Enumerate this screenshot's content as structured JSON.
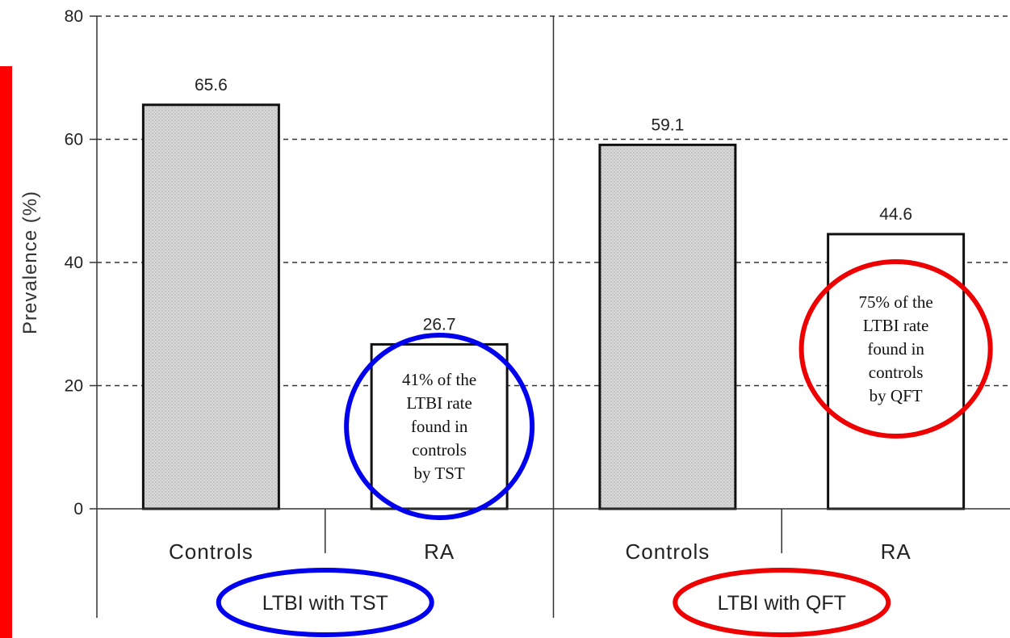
{
  "chart_data": {
    "type": "bar",
    "ylabel": "Prevalence (%)",
    "ylim": [
      0,
      80
    ],
    "yticks": [
      "0",
      "20",
      "40",
      "60",
      "80"
    ],
    "grid": "horizontal dashed",
    "groups": [
      {
        "label": "LTBI with TST",
        "categories": [
          "Controls",
          "RA"
        ],
        "values": [
          65.6,
          26.7
        ],
        "value_labels": [
          "65.6",
          "26.7"
        ],
        "fills": [
          "#d8d8d8",
          "#ffffff"
        ]
      },
      {
        "label": "LTBI with QFT",
        "categories": [
          "Controls",
          "RA"
        ],
        "values": [
          59.1,
          44.6
        ],
        "value_labels": [
          "59.1",
          "44.6"
        ],
        "fills": [
          "#d8d8d8",
          "#ffffff"
        ]
      }
    ],
    "annotations": [
      {
        "lines": [
          "41% of the",
          "LTBI rate",
          "found in",
          "controls",
          "by  TST"
        ],
        "circle_color": "#0000ee"
      },
      {
        "lines": [
          "75% of the",
          "LTBI rate",
          "found in",
          "controls",
          "by QFT"
        ],
        "circle_color": "#ee0000"
      }
    ],
    "group_label_circle_colors": [
      "#0000ee",
      "#ee0000"
    ],
    "left_stripe_color": "#ff0000"
  }
}
